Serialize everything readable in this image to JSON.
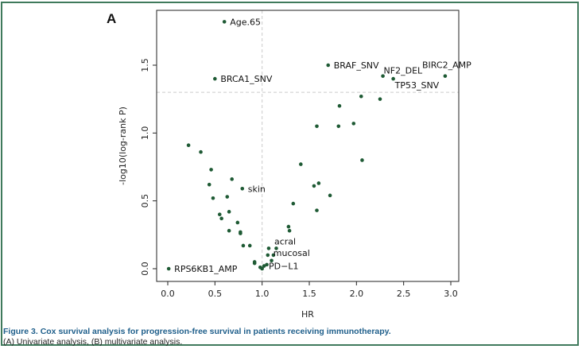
{
  "panel_letter": "A",
  "caption": {
    "figure_label": "Figure 3.",
    "title": "Cox survival analysis for progression-free survival in patients receiving immunotherapy.",
    "subtitle": "(A) Univariate analysis, (B) multivariate analysis."
  },
  "colors": {
    "frame": "#3f7a5c",
    "points": "#1e5a34",
    "reference_lines": "#cccccc",
    "caption_title": "#1f5f8b"
  },
  "chart_data": {
    "type": "scatter",
    "title": "",
    "xlabel": "HR",
    "ylabel": "-log10(log-rank P)",
    "xlim": [
      0.0,
      3.0
    ],
    "ylim": [
      0.0,
      1.8
    ],
    "x_ticks": [
      "0.0",
      "0.5",
      "1.0",
      "1.5",
      "2.0",
      "2.5",
      "3.0"
    ],
    "y_ticks": [
      "0.0",
      "0.5",
      "1.0",
      "1.5"
    ],
    "reference_lines": {
      "vertical_x": 1.0,
      "horizontal_y": 1.3
    },
    "labeled_points": [
      {
        "label": "Age.65",
        "x": 0.6,
        "y": 1.82
      },
      {
        "label": "BRAF_SNV",
        "x": 1.7,
        "y": 1.5
      },
      {
        "label": "BRCA1_SNV",
        "x": 0.5,
        "y": 1.4
      },
      {
        "label": "NF2_DEL",
        "x": 2.28,
        "y": 1.42
      },
      {
        "label": "BIRC2_AMP",
        "x": 2.94,
        "y": 1.42
      },
      {
        "label": "TP53_SNV",
        "x": 2.39,
        "y": 1.4
      },
      {
        "label": "skin",
        "x": 0.79,
        "y": 0.59
      },
      {
        "label": "acral",
        "x": 1.07,
        "y": 0.15
      },
      {
        "label": "mucosal",
        "x": 1.06,
        "y": 0.1
      },
      {
        "label": "PD−L1",
        "x": 1.02,
        "y": 0.02
      },
      {
        "label": "RPS6KB1_AMP",
        "x": 0.01,
        "y": 0.0
      }
    ],
    "points": [
      [
        0.22,
        0.91
      ],
      [
        0.35,
        0.86
      ],
      [
        0.46,
        0.73
      ],
      [
        0.44,
        0.62
      ],
      [
        0.68,
        0.66
      ],
      [
        0.48,
        0.52
      ],
      [
        0.63,
        0.53
      ],
      [
        0.55,
        0.4
      ],
      [
        0.57,
        0.37
      ],
      [
        0.65,
        0.42
      ],
      [
        0.74,
        0.34
      ],
      [
        0.77,
        0.27
      ],
      [
        0.77,
        0.26
      ],
      [
        0.65,
        0.28
      ],
      [
        0.8,
        0.17
      ],
      [
        0.87,
        0.17
      ],
      [
        0.92,
        0.05
      ],
      [
        0.92,
        0.04
      ],
      [
        0.98,
        0.01
      ],
      [
        1.0,
        0.0
      ],
      [
        1.05,
        0.03
      ],
      [
        1.1,
        0.06
      ],
      [
        1.12,
        0.1
      ],
      [
        1.15,
        0.15
      ],
      [
        1.28,
        0.31
      ],
      [
        1.29,
        0.28
      ],
      [
        1.33,
        0.48
      ],
      [
        1.41,
        0.77
      ],
      [
        1.55,
        0.61
      ],
      [
        1.6,
        0.63
      ],
      [
        1.58,
        0.43
      ],
      [
        1.72,
        0.54
      ],
      [
        1.58,
        1.05
      ],
      [
        1.81,
        1.05
      ],
      [
        1.82,
        1.2
      ],
      [
        1.97,
        1.07
      ],
      [
        2.05,
        1.27
      ],
      [
        2.06,
        0.8
      ],
      [
        2.25,
        1.25
      ]
    ]
  }
}
